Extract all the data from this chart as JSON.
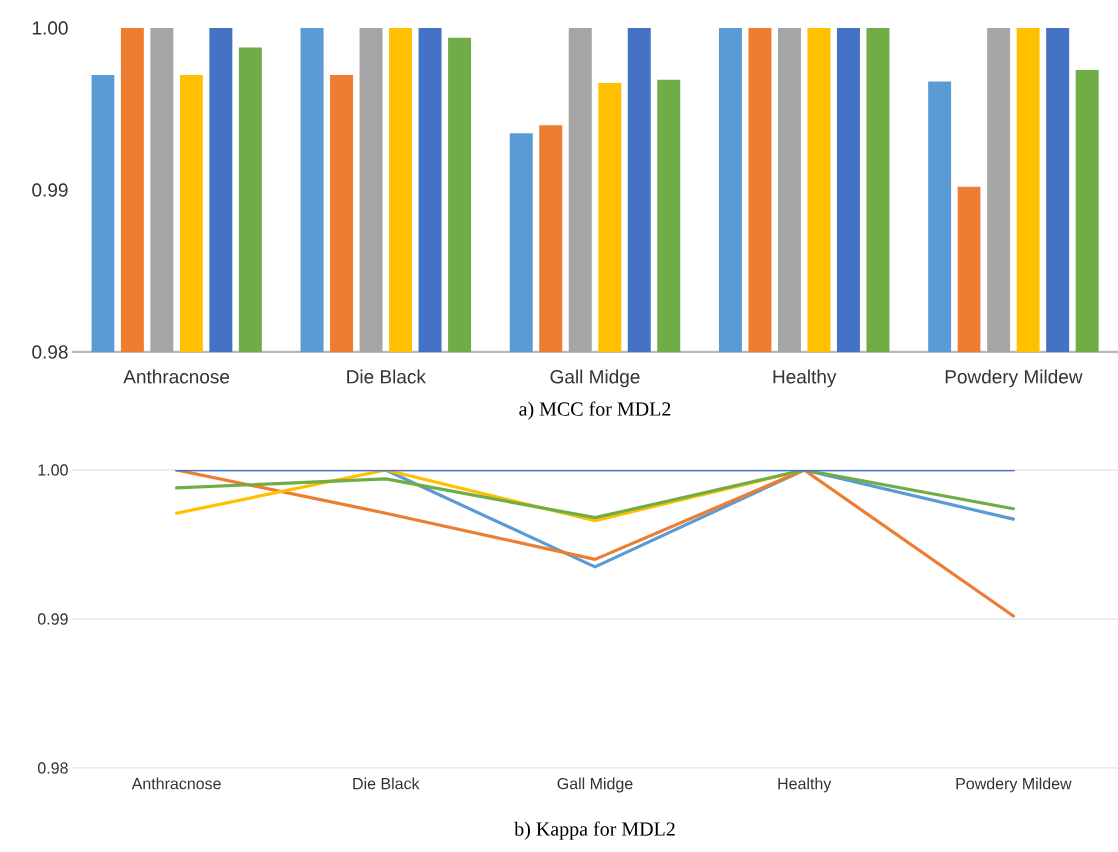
{
  "chart_data": [
    {
      "type": "bar",
      "title": "a) MCC for MDL2",
      "categories": [
        "Anthracnose",
        "Die Black",
        "Gall Midge",
        "Healthy",
        "Powdery Mildew"
      ],
      "series": [
        {
          "color": "#5b9bd5",
          "values": [
            0.9971,
            1,
            0.9935,
            1,
            0.9967
          ]
        },
        {
          "color": "#ed7d31",
          "values": [
            1,
            0.9971,
            0.994,
            1,
            0.9902
          ]
        },
        {
          "color": "#a5a5a5",
          "values": [
            1,
            1,
            1,
            1,
            1
          ]
        },
        {
          "color": "#ffc000",
          "values": [
            0.9971,
            1,
            0.9966,
            1,
            1
          ]
        },
        {
          "color": "#4472c4",
          "values": [
            1,
            1,
            1,
            1,
            1
          ]
        },
        {
          "color": "#70ad47",
          "values": [
            0.9988,
            0.9994,
            0.9968,
            1,
            0.9974
          ]
        }
      ],
      "ylim": [
        0.98,
        1
      ],
      "yticks": [
        {
          "value": 0.98,
          "label": "0.98"
        },
        {
          "value": 0.99,
          "label": "0.99"
        },
        {
          "value": 1,
          "label": "1.00"
        }
      ],
      "grid": false
    },
    {
      "type": "line",
      "title": "b) Kappa for MDL2",
      "categories": [
        "Anthracnose",
        "Die Black",
        "Gall Midge",
        "Healthy",
        "Powdery Mildew"
      ],
      "series": [
        {
          "color": "#5b9bd5",
          "values": [
            null,
            1,
            0.9935,
            1,
            0.9967
          ]
        },
        {
          "color": "#ed7d31",
          "values": [
            1,
            0.9971,
            0.994,
            1,
            0.9902
          ]
        },
        {
          "color": "#ffc000",
          "values": [
            0.9971,
            1,
            0.9966,
            1,
            null
          ]
        },
        {
          "color": "#70ad47",
          "values": [
            0.9988,
            0.9994,
            0.9968,
            1,
            0.9974
          ]
        },
        {
          "color": "#4472c4",
          "values": [
            1,
            1,
            1,
            1,
            1
          ]
        }
      ],
      "ylim": [
        0.98,
        1
      ],
      "yticks": [
        {
          "value": 0.98,
          "label": "0.98"
        },
        {
          "value": 0.99,
          "label": "0.99"
        },
        {
          "value": 1,
          "label": "1.00"
        }
      ],
      "grid": "y"
    }
  ]
}
